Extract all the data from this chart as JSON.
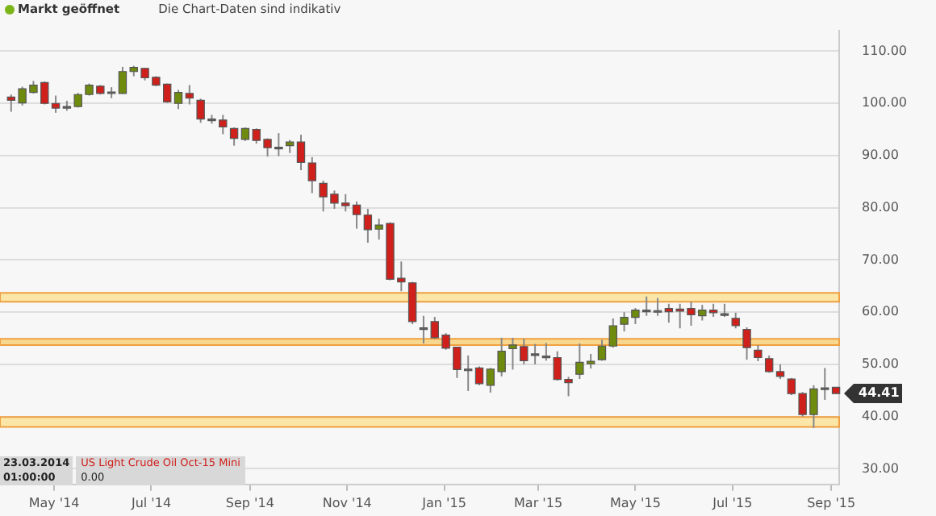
{
  "chart_data": {
    "type": "candlestick",
    "x": [
      "2014-04-04",
      "2014-04-11",
      "2014-04-18",
      "2014-04-25",
      "2014-05-02",
      "2014-05-09",
      "2014-05-16",
      "2014-05-23",
      "2014-05-30",
      "2014-06-06",
      "2014-06-13",
      "2014-06-20",
      "2014-06-27",
      "2014-07-04",
      "2014-07-11",
      "2014-07-18",
      "2014-07-25",
      "2014-08-01",
      "2014-08-08",
      "2014-08-15",
      "2014-08-22",
      "2014-08-29",
      "2014-09-05",
      "2014-09-12",
      "2014-09-19",
      "2014-09-26",
      "2014-10-03",
      "2014-10-10",
      "2014-10-17",
      "2014-10-24",
      "2014-10-31",
      "2014-11-07",
      "2014-11-14",
      "2014-11-21",
      "2014-11-28",
      "2014-12-05",
      "2014-12-12",
      "2014-12-19",
      "2014-12-26",
      "2015-01-02",
      "2015-01-09",
      "2015-01-16",
      "2015-01-23",
      "2015-01-30",
      "2015-02-06",
      "2015-02-13",
      "2015-02-20",
      "2015-02-27",
      "2015-03-06",
      "2015-03-13",
      "2015-03-20",
      "2015-03-27",
      "2015-04-03",
      "2015-04-10",
      "2015-04-17",
      "2015-04-24",
      "2015-05-01",
      "2015-05-08",
      "2015-05-15",
      "2015-05-22",
      "2015-05-29",
      "2015-06-05",
      "2015-06-12",
      "2015-06-19",
      "2015-06-26",
      "2015-07-03",
      "2015-07-10",
      "2015-07-17",
      "2015-07-24",
      "2015-07-31",
      "2015-08-07",
      "2015-08-14",
      "2015-08-21",
      "2015-08-28",
      "2015-09-04"
    ],
    "ohlc": [
      [
        101.2,
        101.7,
        98.4,
        100.6
      ],
      [
        100.1,
        103.2,
        99.6,
        102.8
      ],
      [
        102.1,
        104.3,
        101.9,
        103.5
      ],
      [
        104.0,
        104.2,
        99.8,
        100.0
      ],
      [
        100.0,
        101.5,
        98.2,
        99.1
      ],
      [
        99.3,
        100.5,
        98.6,
        99.4
      ],
      [
        99.4,
        102.0,
        99.2,
        101.7
      ],
      [
        101.7,
        103.8,
        101.5,
        103.5
      ],
      [
        103.3,
        103.5,
        101.7,
        101.9
      ],
      [
        102.1,
        103.1,
        101.0,
        102.2
      ],
      [
        101.9,
        107.0,
        101.8,
        106.1
      ],
      [
        106.1,
        107.2,
        105.2,
        106.9
      ],
      [
        106.7,
        106.8,
        104.4,
        104.9
      ],
      [
        105.0,
        105.2,
        103.3,
        103.5
      ],
      [
        103.7,
        103.8,
        100.1,
        100.3
      ],
      [
        100.0,
        102.6,
        98.9,
        102.1
      ],
      [
        101.9,
        103.5,
        99.8,
        101.0
      ],
      [
        100.6,
        100.9,
        96.3,
        97.0
      ],
      [
        97.0,
        97.8,
        96.1,
        96.9
      ],
      [
        96.8,
        97.8,
        94.1,
        95.5
      ],
      [
        95.2,
        95.4,
        91.9,
        93.3
      ],
      [
        93.1,
        95.4,
        92.8,
        95.2
      ],
      [
        95.0,
        95.2,
        92.3,
        92.9
      ],
      [
        93.1,
        93.3,
        89.8,
        91.5
      ],
      [
        91.6,
        94.3,
        89.9,
        91.5
      ],
      [
        91.9,
        93.0,
        90.5,
        92.6
      ],
      [
        92.6,
        94.0,
        87.2,
        88.7
      ],
      [
        88.6,
        89.7,
        82.8,
        85.2
      ],
      [
        84.7,
        85.2,
        79.3,
        82.1
      ],
      [
        82.6,
        83.3,
        79.8,
        80.9
      ],
      [
        80.9,
        82.6,
        79.3,
        80.4
      ],
      [
        80.5,
        81.2,
        76.0,
        78.7
      ],
      [
        78.6,
        79.8,
        73.3,
        75.8
      ],
      [
        75.9,
        77.9,
        73.9,
        76.7
      ],
      [
        77.0,
        77.2,
        66.1,
        66.3
      ],
      [
        66.5,
        69.7,
        64.0,
        65.8
      ],
      [
        65.6,
        65.8,
        57.7,
        58.2
      ],
      [
        57.0,
        59.3,
        54.0,
        56.9
      ],
      [
        58.2,
        59.1,
        54.9,
        55.1
      ],
      [
        55.6,
        56.0,
        52.8,
        53.1
      ],
      [
        53.3,
        53.3,
        47.4,
        49.0
      ],
      [
        49.1,
        51.7,
        44.9,
        49.0
      ],
      [
        49.3,
        49.6,
        46.0,
        46.3
      ],
      [
        46.0,
        49.3,
        44.6,
        49.1
      ],
      [
        48.6,
        55.1,
        47.7,
        52.5
      ],
      [
        53.0,
        55.1,
        49.0,
        53.7
      ],
      [
        53.4,
        54.9,
        50.0,
        50.7
      ],
      [
        51.8,
        53.9,
        50.0,
        52.0
      ],
      [
        51.5,
        54.1,
        50.7,
        51.6
      ],
      [
        51.3,
        52.5,
        46.9,
        47.1
      ],
      [
        47.1,
        47.6,
        43.9,
        46.5
      ],
      [
        48.1,
        54.0,
        47.2,
        50.4
      ],
      [
        50.1,
        52.0,
        49.2,
        50.6
      ],
      [
        50.9,
        54.7,
        50.7,
        53.5
      ],
      [
        53.5,
        58.8,
        53.2,
        57.4
      ],
      [
        57.7,
        60.0,
        56.3,
        59.0
      ],
      [
        59.0,
        60.8,
        57.7,
        60.4
      ],
      [
        60.3,
        63.0,
        59.3,
        60.4
      ],
      [
        60.2,
        62.7,
        59.3,
        60.3
      ],
      [
        60.7,
        61.6,
        58.0,
        60.1
      ],
      [
        60.6,
        61.6,
        56.9,
        60.2
      ],
      [
        60.7,
        62.0,
        57.4,
        59.5
      ],
      [
        59.3,
        61.4,
        58.4,
        60.4
      ],
      [
        60.4,
        61.6,
        59.1,
        59.9
      ],
      [
        59.7,
        61.6,
        59.1,
        59.6
      ],
      [
        58.8,
        59.9,
        56.9,
        57.4
      ],
      [
        56.7,
        57.1,
        50.9,
        53.2
      ],
      [
        52.7,
        53.7,
        50.6,
        51.3
      ],
      [
        51.1,
        51.7,
        48.4,
        48.6
      ],
      [
        48.6,
        50.0,
        47.2,
        47.7
      ],
      [
        47.2,
        47.4,
        44.1,
        44.4
      ],
      [
        44.4,
        44.7,
        40.0,
        40.4
      ],
      [
        40.4,
        46.0,
        37.8,
        45.3
      ],
      [
        45.4,
        49.3,
        43.2,
        45.5
      ],
      [
        45.6,
        45.6,
        44.4,
        44.41
      ]
    ],
    "colors": [
      "#d0201c",
      "#6e8b0e",
      "#6e8b0e",
      "#d0201c",
      "#d0201c",
      "#666666",
      "#6e8b0e",
      "#6e8b0e",
      "#d0201c",
      "#666666",
      "#6e8b0e",
      "#6e8b0e",
      "#d0201c",
      "#d0201c",
      "#d0201c",
      "#6e8b0e",
      "#d0201c",
      "#d0201c",
      "#666666",
      "#d0201c",
      "#d0201c",
      "#6e8b0e",
      "#d0201c",
      "#d0201c",
      "#666666",
      "#6e8b0e",
      "#d0201c",
      "#d0201c",
      "#d0201c",
      "#d0201c",
      "#d0201c",
      "#d0201c",
      "#d0201c",
      "#6e8b0e",
      "#d0201c",
      "#d0201c",
      "#d0201c",
      "#666666",
      "#d0201c",
      "#d0201c",
      "#d0201c",
      "#666666",
      "#d0201c",
      "#6e8b0e",
      "#6e8b0e",
      "#6e8b0e",
      "#d0201c",
      "#666666",
      "#666666",
      "#d0201c",
      "#d0201c",
      "#6e8b0e",
      "#6e8b0e",
      "#6e8b0e",
      "#6e8b0e",
      "#6e8b0e",
      "#6e8b0e",
      "#666666",
      "#666666",
      "#d0201c",
      "#d0201c",
      "#d0201c",
      "#6e8b0e",
      "#d0201c",
      "#666666",
      "#d0201c",
      "#d0201c",
      "#d0201c",
      "#d0201c",
      "#d0201c",
      "#d0201c",
      "#d0201c",
      "#6e8b0e",
      "#666666",
      "#d0201c"
    ],
    "xlim": [
      "2014-03-28",
      "2015-09-06"
    ],
    "xticks": [
      {
        "value": "2014-05-01",
        "label": "May '14"
      },
      {
        "value": "2014-07-01",
        "label": "Jul '14"
      },
      {
        "value": "2014-09-01",
        "label": "Sep '14"
      },
      {
        "value": "2014-11-01",
        "label": "Nov '14"
      },
      {
        "value": "2015-01-01",
        "label": "Jan '15"
      },
      {
        "value": "2015-03-01",
        "label": "Mar '15"
      },
      {
        "value": "2015-05-01",
        "label": "May '15"
      },
      {
        "value": "2015-07-01",
        "label": "Jul '15"
      },
      {
        "value": "2015-09-01",
        "label": "Sep '15"
      }
    ],
    "ylim": [
      27,
      114
    ],
    "yticks": [
      {
        "value": 30,
        "label": "30.00"
      },
      {
        "value": 40,
        "label": "40.00"
      },
      {
        "value": 50,
        "label": "50.00"
      },
      {
        "value": 60,
        "label": "60.00"
      },
      {
        "value": 70,
        "label": "70.00"
      },
      {
        "value": 80,
        "label": "80.00"
      },
      {
        "value": 90,
        "label": "90.00"
      },
      {
        "value": 100,
        "label": "100.00"
      },
      {
        "value": 110,
        "label": "110.00"
      }
    ],
    "grid": "y",
    "legend": false,
    "bands": [
      {
        "axis": "y",
        "from": 62.0,
        "to": 63.7,
        "color": "#fbe6a8"
      },
      {
        "axis": "y",
        "from": 53.7,
        "to": 54.9,
        "color": "#f8d890"
      },
      {
        "axis": "y",
        "from": 38.0,
        "to": 39.9,
        "color": "#fbe6a8"
      }
    ],
    "annotations": [
      "Markt geöffnet",
      "Die Chart-Daten sind indikativ",
      "23.03.2014",
      "01:00:00",
      "US Light Crude Oil Oct-15 Mini",
      "0.00",
      "44.41"
    ]
  }
}
